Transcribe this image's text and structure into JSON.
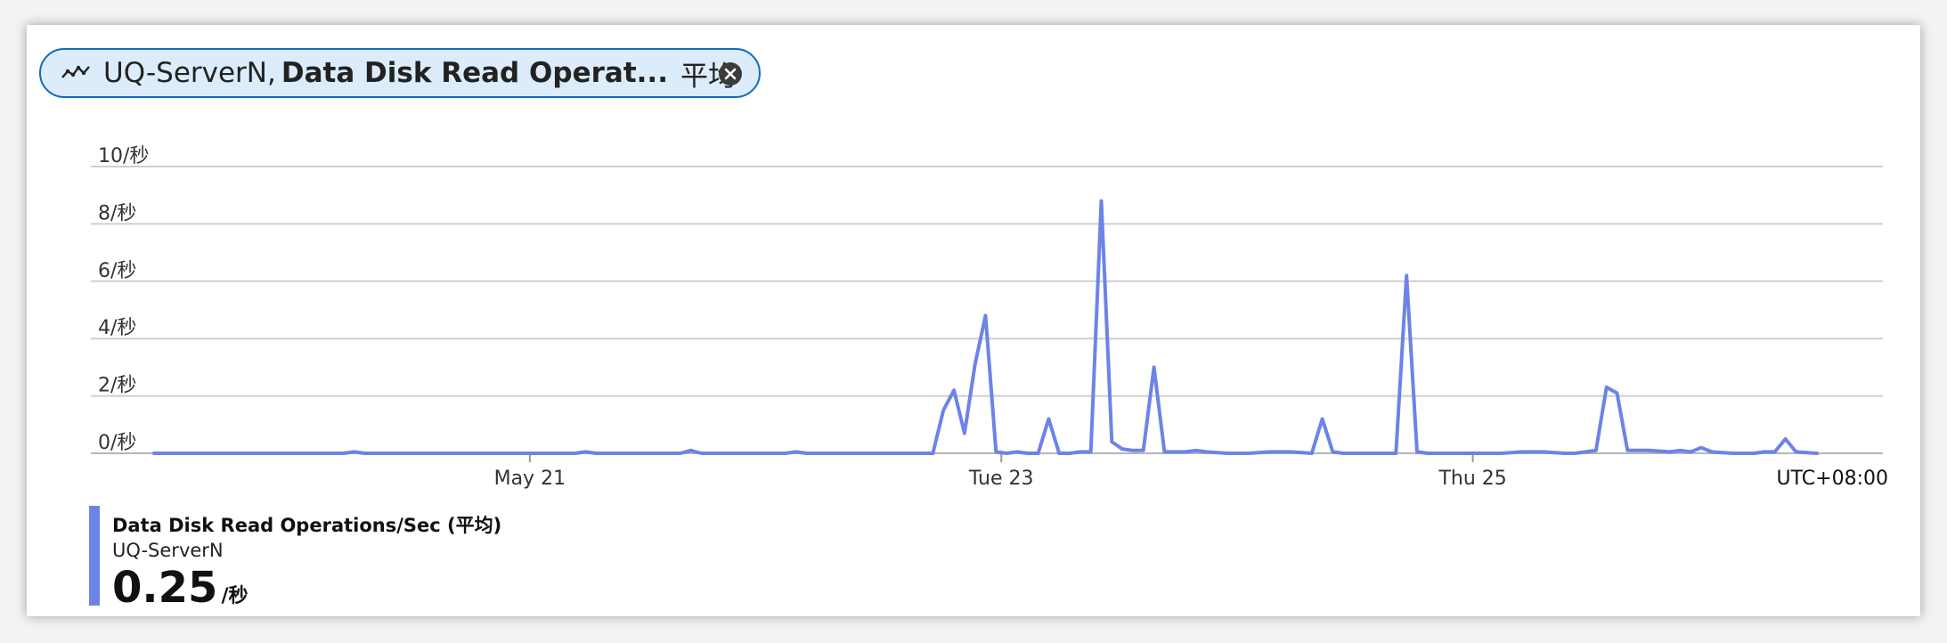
{
  "pill": {
    "resource": "UQ-ServerN,",
    "metric": "Data Disk Read Operat...",
    "aggregation": "平均",
    "icon": "metric-line-icon",
    "close_icon": "close-icon"
  },
  "legend": {
    "title": "Data Disk Read Operations/Sec (平均)",
    "subtitle": "UQ-ServerN",
    "value": "0.25",
    "unit": "/秒",
    "color": "#6c83e8"
  },
  "chart_data": {
    "type": "line",
    "title": "",
    "xlabel": "",
    "ylabel": "",
    "ylim": [
      0,
      10
    ],
    "y_ticks": [
      {
        "value": 0,
        "label": "0/秒"
      },
      {
        "value": 2,
        "label": "2/秒"
      },
      {
        "value": 4,
        "label": "4/秒"
      },
      {
        "value": 6,
        "label": "6/秒"
      },
      {
        "value": 8,
        "label": "8/秒"
      },
      {
        "value": 10,
        "label": "10/秒"
      }
    ],
    "x_unit": "hours since start of visible range",
    "xlim": [
      0,
      158
    ],
    "x_ticks": [
      {
        "value": 35.7,
        "label": "May 21"
      },
      {
        "value": 80.5,
        "label": "Tue 23"
      },
      {
        "value": 125.3,
        "label": "Thu 25"
      }
    ],
    "timezone_label": "UTC+08:00",
    "grid": true,
    "series": [
      {
        "name": "UQ-ServerN",
        "color": "#6c83e8",
        "x": [
          0,
          5,
          10,
          15,
          18,
          19,
          20,
          25,
          30,
          35,
          40,
          41,
          42,
          45,
          50,
          51,
          52,
          55,
          60,
          61,
          62,
          65,
          70,
          72,
          74,
          75,
          76,
          77,
          78,
          79,
          80,
          81,
          82,
          83,
          84,
          85,
          86,
          87,
          88,
          89,
          90,
          91,
          92,
          93,
          94,
          95,
          96,
          97,
          98,
          99,
          100,
          102,
          104,
          106,
          108,
          110,
          111,
          112,
          113,
          115,
          118,
          119,
          120,
          121,
          122,
          124,
          126,
          128,
          130,
          132,
          134,
          135,
          136,
          137,
          138,
          139,
          140,
          142,
          144,
          145,
          146,
          147,
          148,
          150,
          152,
          153,
          154,
          155,
          156,
          158
        ],
        "y": [
          0,
          0,
          0,
          0,
          0,
          0.05,
          0,
          0,
          0,
          0,
          0,
          0.05,
          0,
          0,
          0,
          0.1,
          0,
          0,
          0,
          0.05,
          0,
          0,
          0,
          0,
          0,
          1.5,
          2.2,
          0.7,
          3.1,
          4.8,
          0.05,
          0,
          0.05,
          0,
          0,
          1.2,
          0,
          0,
          0.05,
          0.05,
          8.8,
          0.4,
          0.15,
          0.1,
          0.1,
          3,
          0.05,
          0.05,
          0.05,
          0.1,
          0.05,
          0,
          0,
          0.05,
          0.05,
          0,
          1.2,
          0.05,
          0,
          0,
          0,
          6.2,
          0.05,
          0,
          0,
          0,
          0,
          0,
          0.05,
          0.05,
          0,
          0,
          0.05,
          0.1,
          2.3,
          2.1,
          0.1,
          0.1,
          0.05,
          0.1,
          0.05,
          0.2,
          0.05,
          0,
          0,
          0.05,
          0.05,
          0.5,
          0.05,
          0
        ]
      }
    ]
  }
}
